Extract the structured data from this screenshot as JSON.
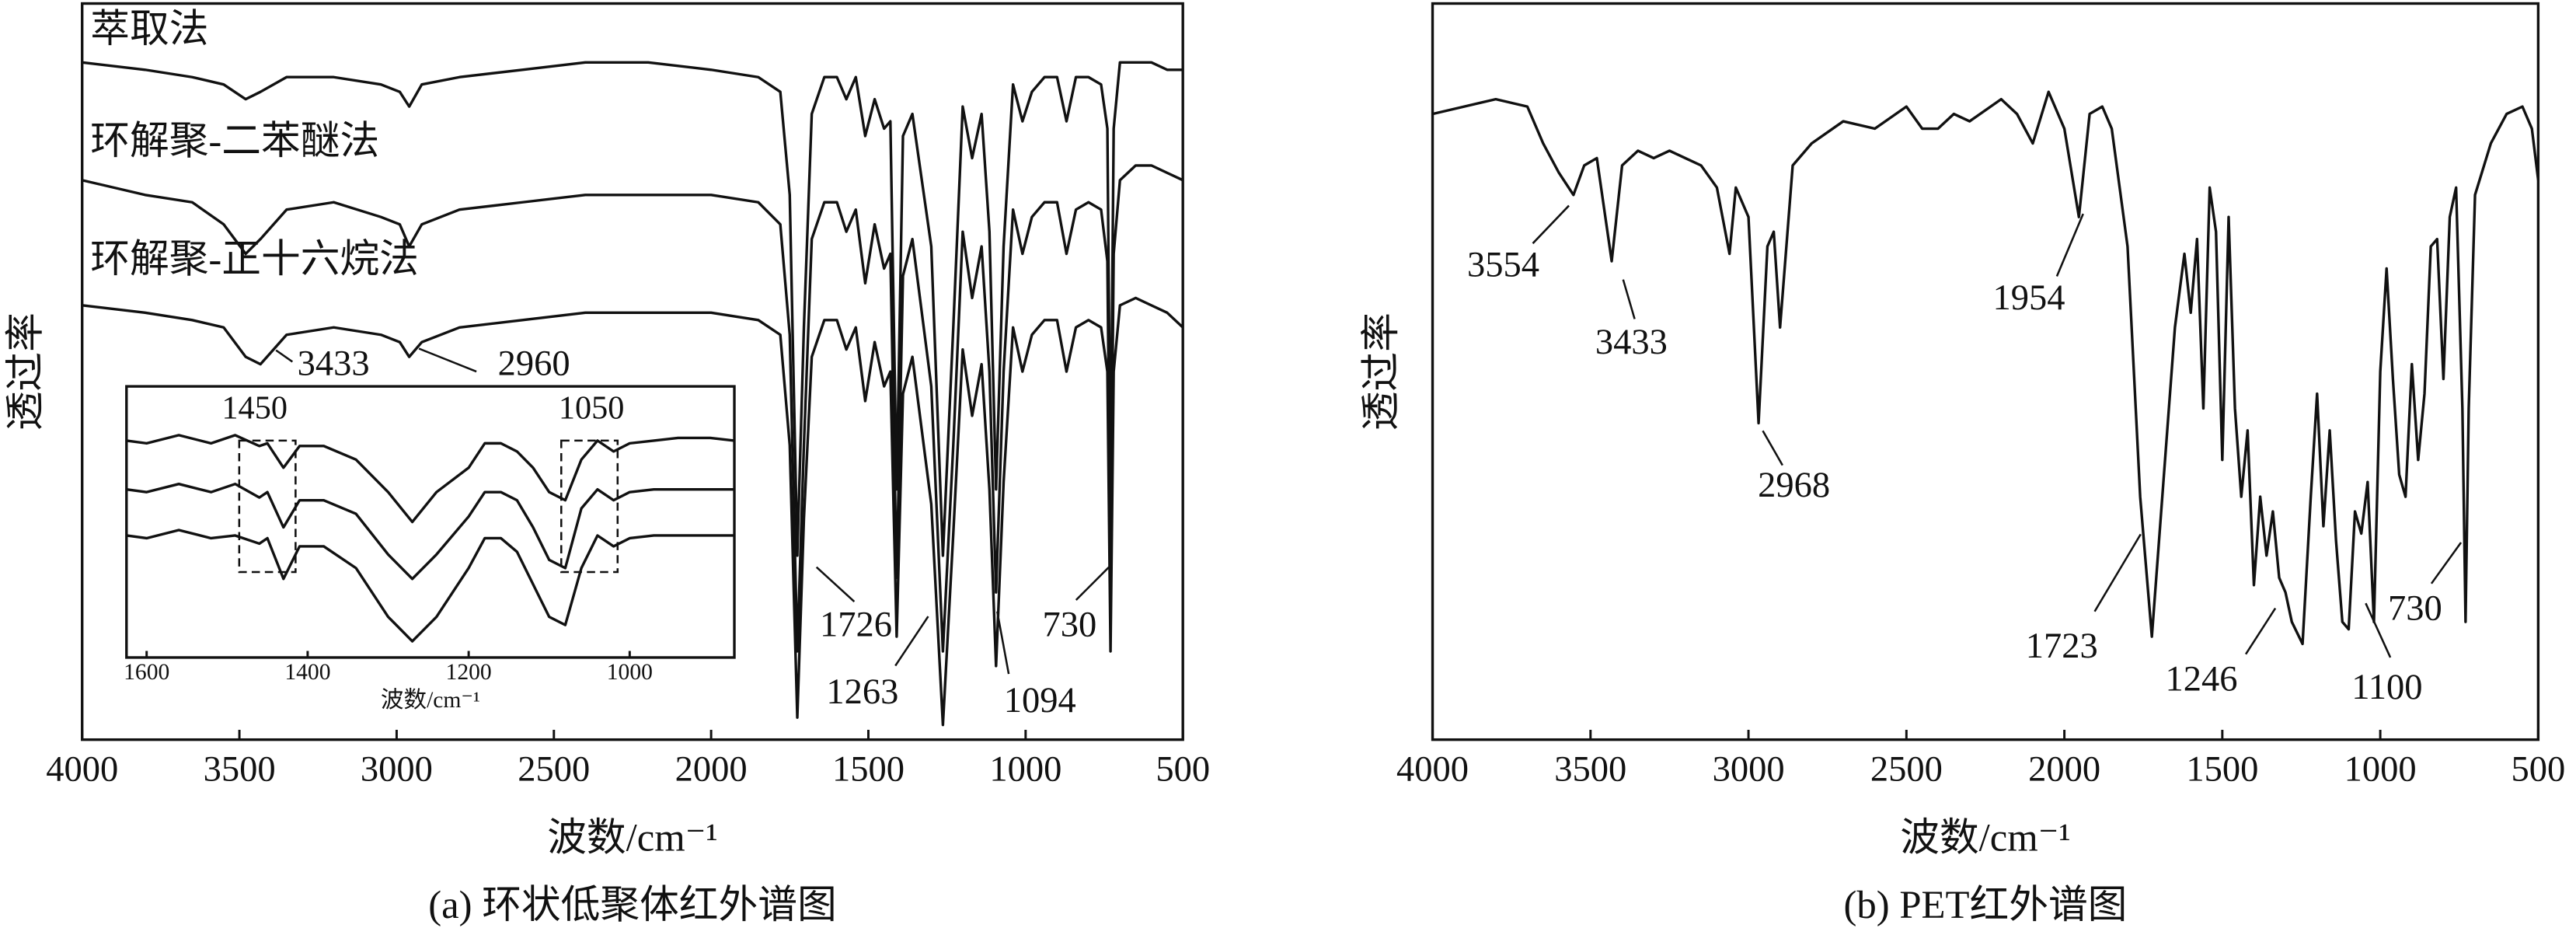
{
  "chart_data": [
    {
      "type": "line",
      "x_label": "波数/cm⁻¹",
      "y_label": "透过率",
      "caption": "(a) 环状低聚体红外谱图",
      "xlim": [
        4000,
        500
      ],
      "xticks": [
        4000,
        3500,
        3000,
        2500,
        2000,
        1500,
        1000,
        500
      ],
      "ylim": [
        0,
        100
      ],
      "x": [
        4000,
        3800,
        3650,
        3550,
        3480,
        3433,
        3350,
        3200,
        3050,
        2990,
        2960,
        2920,
        2800,
        2600,
        2400,
        2200,
        2000,
        1850,
        1780,
        1750,
        1726,
        1705,
        1680,
        1640,
        1600,
        1570,
        1540,
        1510,
        1480,
        1450,
        1430,
        1410,
        1390,
        1360,
        1330,
        1300,
        1263,
        1230,
        1200,
        1170,
        1140,
        1115,
        1094,
        1070,
        1040,
        1010,
        980,
        940,
        900,
        870,
        840,
        800,
        760,
        740,
        730,
        720,
        700,
        650,
        600,
        550,
        500
      ],
      "series": [
        {
          "name": "萃取法",
          "color": "#111111",
          "values": [
            92,
            91,
            90,
            89,
            87,
            88,
            90,
            90,
            89,
            88,
            86,
            89,
            90,
            91,
            92,
            92,
            91,
            90,
            88,
            74,
            25,
            56,
            85,
            90,
            90,
            87,
            90,
            82,
            87,
            83,
            84,
            34,
            82,
            85,
            76,
            67,
            25,
            56,
            86,
            79,
            85,
            69,
            34,
            67,
            89,
            84,
            88,
            90,
            90,
            84,
            90,
            90,
            89,
            83,
            34,
            83,
            92,
            92,
            92,
            91,
            91
          ]
        },
        {
          "name": "环解聚-二苯醚法",
          "color": "#111111",
          "values": [
            76,
            74,
            73,
            70,
            66,
            68,
            72,
            73,
            71,
            70,
            67,
            70,
            72,
            73,
            74,
            74,
            74,
            73,
            70,
            55,
            12,
            40,
            68,
            73,
            73,
            69,
            72,
            62,
            70,
            64,
            66,
            22,
            63,
            68,
            58,
            48,
            12,
            40,
            69,
            60,
            67,
            50,
            20,
            50,
            72,
            66,
            71,
            73,
            73,
            66,
            72,
            73,
            72,
            65,
            22,
            66,
            76,
            78,
            78,
            77,
            76
          ]
        },
        {
          "name": "环解聚-正十六烷法",
          "color": "#111111",
          "values": [
            59,
            58,
            57,
            56,
            52,
            51,
            55,
            56,
            55,
            54,
            52,
            54,
            56,
            57,
            58,
            58,
            58,
            57,
            55,
            40,
            3,
            30,
            52,
            57,
            57,
            53,
            56,
            46,
            54,
            48,
            50,
            14,
            47,
            52,
            42,
            32,
            2,
            28,
            53,
            44,
            51,
            34,
            10,
            35,
            56,
            50,
            55,
            57,
            57,
            50,
            56,
            57,
            56,
            50,
            12,
            50,
            59,
            60,
            59,
            58,
            56
          ]
        }
      ],
      "peak_labels": [
        3433,
        2960,
        1726,
        1263,
        1094,
        730
      ]
    },
    {
      "type": "line",
      "x_label": "波数/cm⁻¹",
      "xlim": [
        1625,
        870
      ],
      "xticks": [
        1600,
        1400,
        1200,
        1000
      ],
      "ylim": [
        0,
        100
      ],
      "x": [
        1625,
        1600,
        1560,
        1520,
        1490,
        1460,
        1450,
        1430,
        1410,
        1380,
        1340,
        1300,
        1270,
        1240,
        1200,
        1180,
        1160,
        1140,
        1120,
        1100,
        1080,
        1060,
        1040,
        1020,
        1000,
        970,
        940,
        900,
        870
      ],
      "series": [
        {
          "color": "#111111",
          "values": [
            80,
            79,
            82,
            79,
            82,
            78,
            79,
            70,
            78,
            78,
            73,
            61,
            50,
            61,
            70,
            79,
            79,
            76,
            70,
            61,
            58,
            73,
            80,
            76,
            79,
            80,
            81,
            81,
            80
          ]
        },
        {
          "color": "#111111",
          "values": [
            62,
            61,
            64,
            61,
            64,
            59,
            61,
            48,
            58,
            58,
            53,
            38,
            29,
            38,
            52,
            61,
            61,
            58,
            48,
            36,
            33,
            55,
            62,
            58,
            61,
            62,
            62,
            62,
            62
          ]
        },
        {
          "color": "#111111",
          "values": [
            45,
            44,
            47,
            44,
            45,
            42,
            44,
            29,
            41,
            41,
            33,
            15,
            6,
            15,
            33,
            44,
            44,
            39,
            27,
            15,
            12,
            33,
            45,
            41,
            44,
            45,
            45,
            45,
            45
          ]
        }
      ],
      "band_labels": [
        1450,
        1050
      ]
    },
    {
      "type": "line",
      "x_label": "波数/cm⁻¹",
      "y_label": "透过率",
      "caption": "(b) PET红外谱图",
      "xlim": [
        4000,
        500
      ],
      "xticks": [
        4000,
        3500,
        3000,
        2500,
        2000,
        1500,
        1000,
        500
      ],
      "ylim": [
        0,
        100
      ],
      "x": [
        4000,
        3900,
        3800,
        3700,
        3650,
        3600,
        3554,
        3520,
        3480,
        3433,
        3400,
        3350,
        3300,
        3250,
        3200,
        3150,
        3100,
        3060,
        3040,
        3000,
        2968,
        2940,
        2920,
        2900,
        2860,
        2800,
        2700,
        2600,
        2500,
        2450,
        2400,
        2350,
        2300,
        2200,
        2150,
        2100,
        2050,
        2000,
        1954,
        1920,
        1880,
        1850,
        1800,
        1760,
        1723,
        1690,
        1650,
        1620,
        1600,
        1580,
        1560,
        1540,
        1520,
        1500,
        1480,
        1460,
        1440,
        1420,
        1400,
        1380,
        1360,
        1340,
        1320,
        1300,
        1280,
        1246,
        1220,
        1200,
        1180,
        1160,
        1140,
        1120,
        1100,
        1080,
        1060,
        1040,
        1020,
        1000,
        980,
        960,
        940,
        920,
        900,
        880,
        860,
        840,
        820,
        800,
        780,
        760,
        740,
        730,
        720,
        700,
        650,
        600,
        550,
        520,
        500
      ],
      "series": [
        {
          "color": "#111111",
          "values": [
            85,
            86,
            87,
            86,
            81,
            77,
            74,
            78,
            79,
            65,
            78,
            80,
            79,
            80,
            79,
            78,
            75,
            66,
            75,
            71,
            43,
            67,
            69,
            56,
            78,
            81,
            84,
            83,
            86,
            83,
            83,
            85,
            84,
            87,
            85,
            81,
            88,
            83,
            71,
            85,
            86,
            83,
            67,
            33,
            14,
            33,
            56,
            66,
            58,
            68,
            45,
            75,
            69,
            38,
            71,
            45,
            33,
            42,
            21,
            33,
            25,
            31,
            22,
            20,
            16,
            13,
            33,
            47,
            29,
            42,
            27,
            16,
            15,
            31,
            28,
            35,
            16,
            50,
            64,
            49,
            36,
            33,
            51,
            38,
            47,
            67,
            68,
            49,
            71,
            75,
            45,
            16,
            45,
            74,
            81,
            85,
            86,
            83,
            76
          ]
        }
      ],
      "peak_labels": [
        3554,
        3433,
        2968,
        1954,
        1723,
        1246,
        1100,
        730
      ]
    }
  ]
}
